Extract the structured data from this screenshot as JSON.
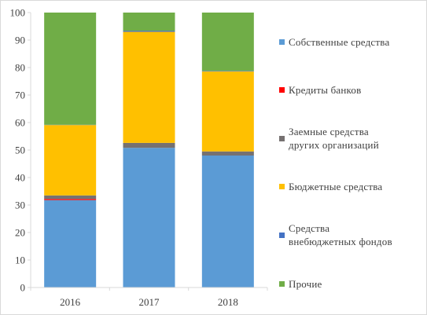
{
  "chart_data": {
    "type": "bar",
    "stacked": true,
    "title": "",
    "xlabel": "",
    "ylabel": "",
    "ylim": [
      0,
      100
    ],
    "yticks": [
      0,
      10,
      20,
      30,
      40,
      50,
      60,
      70,
      80,
      90,
      100
    ],
    "categories": [
      "2016",
      "2017",
      "2018"
    ],
    "legend_position": "right",
    "grid": false,
    "series": [
      {
        "name": "Собственные средства",
        "color": "#5b9bd5",
        "values": [
          31.8,
          50.8,
          48.0
        ]
      },
      {
        "name": "Кредиты банков",
        "color": "#ff0000",
        "values": [
          0.4,
          0.0,
          0.0
        ]
      },
      {
        "name": "Заемные средства\nдругих  организаций",
        "color": "#767171",
        "values": [
          1.3,
          1.8,
          1.5
        ]
      },
      {
        "name": "Бюджетные средства",
        "color": "#ffc000",
        "values": [
          25.6,
          40.4,
          29.1
        ]
      },
      {
        "name": "Средства\nвнебюджетных фондов",
        "color": "#4472c4",
        "values": [
          0.1,
          0.4,
          0.2
        ]
      },
      {
        "name": "Прочие",
        "color": "#70ad47",
        "values": [
          40.8,
          6.6,
          21.2
        ]
      }
    ]
  }
}
